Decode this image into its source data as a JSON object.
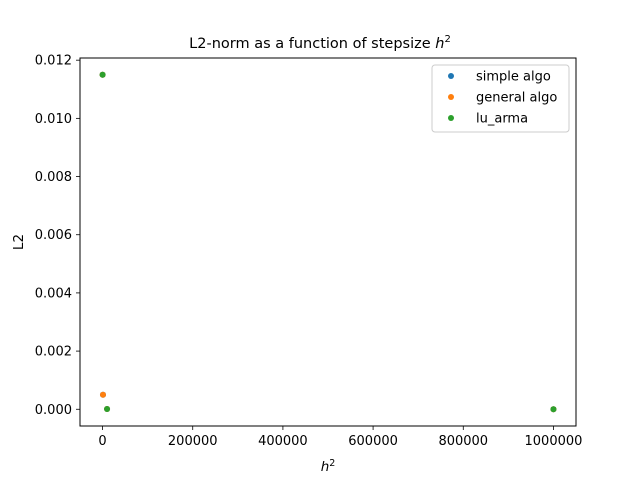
{
  "chart_data": {
    "type": "scatter",
    "title": "L2-norm as a function of stepsize h²",
    "title_text": "L2-norm as a function of stepsize ",
    "title_math_base": "h",
    "title_math_sup": "2",
    "xlabel_base": "h",
    "xlabel_sup": "2",
    "ylabel": "L2",
    "xlim": [
      -50000,
      1050000
    ],
    "ylim": [
      -0.000575,
      0.012075
    ],
    "x_ticks": [
      0,
      200000,
      400000,
      600000,
      800000,
      1000000
    ],
    "x_tick_labels": [
      "0",
      "200000",
      "400000",
      "600000",
      "800000",
      "1000000"
    ],
    "y_ticks": [
      0.0,
      0.002,
      0.004,
      0.006,
      0.008,
      0.01,
      0.012
    ],
    "y_tick_labels": [
      "0.000",
      "0.002",
      "0.004",
      "0.006",
      "0.008",
      "0.010",
      "0.012"
    ],
    "grid": false,
    "legend_position": "top-right",
    "series": [
      {
        "name": "simple algo",
        "color": "#1f77b4",
        "points": [
          [
            100,
            0.0115
          ],
          [
            1000,
            0.0005
          ],
          [
            10000,
            1e-05
          ],
          [
            1000000,
            1e-07
          ]
        ]
      },
      {
        "name": "general algo",
        "color": "#ff7f0e",
        "points": [
          [
            100,
            0.0115
          ],
          [
            1000,
            0.0005
          ],
          [
            10000,
            1e-05
          ],
          [
            1000000,
            1e-07
          ]
        ]
      },
      {
        "name": "lu_arma",
        "color": "#2ca02c",
        "points": [
          [
            100,
            0.0115
          ],
          [
            10000,
            1e-05
          ],
          [
            1000000,
            1e-07
          ]
        ]
      }
    ]
  }
}
